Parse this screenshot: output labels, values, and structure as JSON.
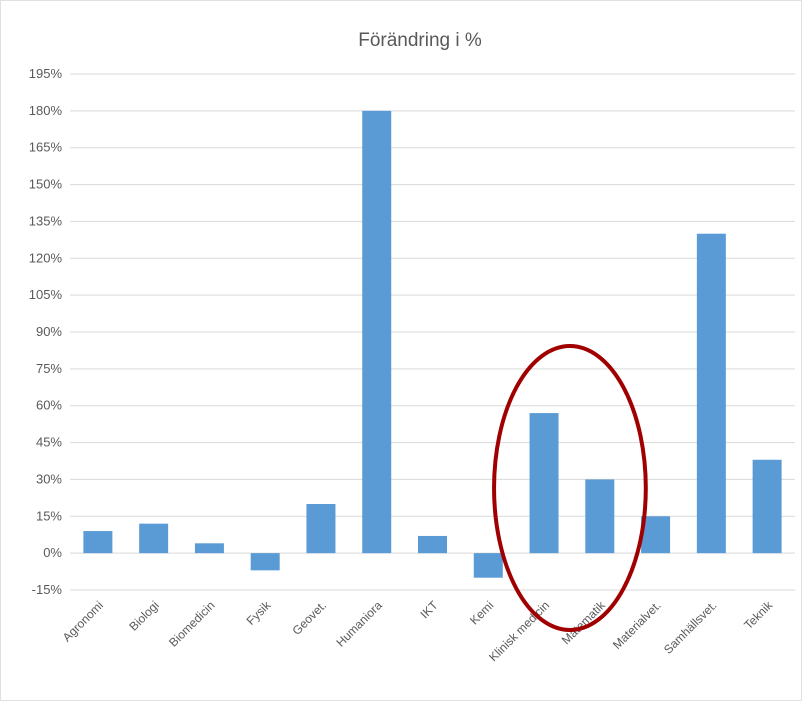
{
  "chart_data": {
    "type": "bar",
    "title": "Förändring i %",
    "xlabel": "",
    "ylabel": "",
    "categories": [
      "Agronomi",
      "Biologi",
      "Biomedicin",
      "Fysik",
      "Geovet.",
      "Humaniora",
      "IKT",
      "Kemi",
      "Klinisk medicin",
      "Matematik",
      "Materialvet.",
      "Samhällsvet.",
      "Teknik"
    ],
    "values": [
      9,
      12,
      4,
      -7,
      20,
      180,
      7,
      -10,
      57,
      30,
      15,
      130,
      38
    ],
    "y_ticks": [
      "-15%",
      "0%",
      "15%",
      "30%",
      "45%",
      "60%",
      "75%",
      "90%",
      "105%",
      "120%",
      "135%",
      "150%",
      "165%",
      "180%",
      "195%"
    ],
    "ylim": [
      -15,
      195
    ],
    "grid": true,
    "legend": "none",
    "bar_color": "#5b9bd5",
    "grid_color": "#d9d9d9",
    "annotation": {
      "shape": "ellipse",
      "color": "#a00000",
      "highlights": [
        "Klinisk medicin",
        "Matematik"
      ]
    }
  }
}
